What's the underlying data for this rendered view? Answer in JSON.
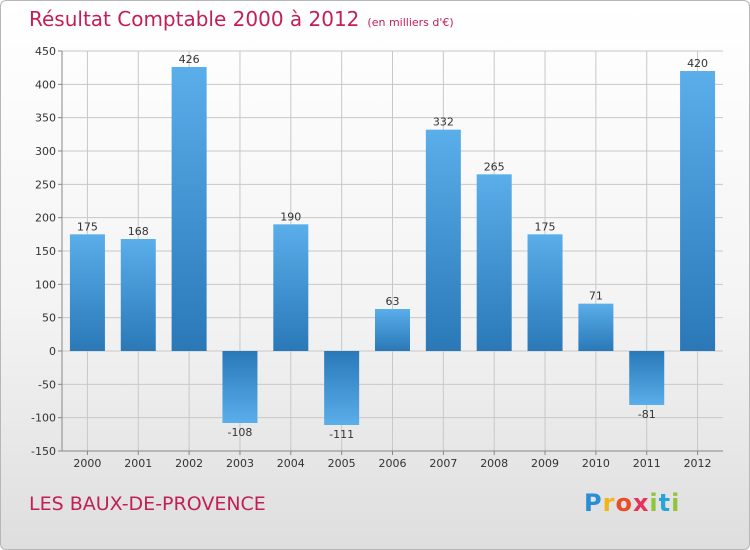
{
  "header": {
    "title": "Résultat Comptable 2000 à 2012",
    "subtitle": "(en milliers d'€)"
  },
  "footer": {
    "city": "LES BAUX-DE-PROVENCE",
    "logo_letters": [
      "P",
      "r",
      "o",
      "x",
      "i",
      "t",
      "i"
    ]
  },
  "colors": {
    "title": "#c21f57",
    "bar_dark": "#2a78b8",
    "bar_light": "#5aaeea",
    "grid": "#c8c8c8",
    "axis_text": "#333333"
  },
  "chart_data": {
    "type": "bar",
    "title": "Résultat Comptable 2000 à 2012",
    "subtitle": "(en milliers d'€)",
    "xlabel": "",
    "ylabel": "",
    "categories": [
      "2000",
      "2001",
      "2002",
      "2003",
      "2004",
      "2005",
      "2006",
      "2007",
      "2008",
      "2009",
      "2010",
      "2011",
      "2012"
    ],
    "values": [
      175,
      168,
      426,
      -108,
      190,
      -111,
      63,
      332,
      265,
      175,
      71,
      -81,
      420
    ],
    "value_labels": [
      "175",
      "168",
      "426",
      "-108",
      "190",
      "-111",
      "63",
      "332",
      "265",
      "175",
      "71",
      "-81",
      "420"
    ],
    "ylim": [
      -150,
      450
    ],
    "yticks": [
      -150,
      -100,
      -50,
      0,
      50,
      100,
      150,
      200,
      250,
      300,
      350,
      400,
      450
    ],
    "grid": true
  }
}
